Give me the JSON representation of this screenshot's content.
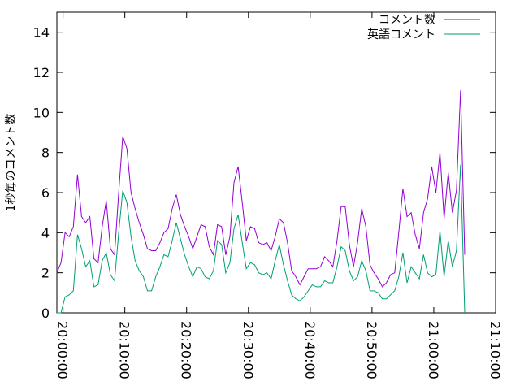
{
  "chart_data": {
    "type": "line",
    "title": "",
    "xlabel": "",
    "ylabel": "1秒毎のコメント数",
    "x_tick_labels": [
      "20:00:00",
      "20:10:00",
      "20:20:00",
      "20:30:00",
      "20:40:00",
      "20:50:00",
      "21:00:00",
      "21:10:00"
    ],
    "y_ticks": [
      0,
      2,
      4,
      6,
      8,
      10,
      12,
      14
    ],
    "xlim": [
      "19:59:00",
      "21:10:00"
    ],
    "ylim": [
      0,
      15
    ],
    "legend_position": "top-right",
    "grid": false,
    "x": [
      "19:59:00",
      "19:59:40",
      "20:00:20",
      "20:01:00",
      "20:01:40",
      "20:02:20",
      "20:03:00",
      "20:03:40",
      "20:04:20",
      "20:05:00",
      "20:05:40",
      "20:06:20",
      "20:07:00",
      "20:07:40",
      "20:08:20",
      "20:09:00",
      "20:09:40",
      "20:10:20",
      "20:11:00",
      "20:11:40",
      "20:12:20",
      "20:13:00",
      "20:13:40",
      "20:14:20",
      "20:15:00",
      "20:15:40",
      "20:16:20",
      "20:17:00",
      "20:17:40",
      "20:18:20",
      "20:19:00",
      "20:19:40",
      "20:20:20",
      "20:21:00",
      "20:21:40",
      "20:22:20",
      "20:23:00",
      "20:23:40",
      "20:24:20",
      "20:25:00",
      "20:25:40",
      "20:26:20",
      "20:27:00",
      "20:27:40",
      "20:28:20",
      "20:29:00",
      "20:29:40",
      "20:30:20",
      "20:31:00",
      "20:31:40",
      "20:32:20",
      "20:33:00",
      "20:33:40",
      "20:34:20",
      "20:35:00",
      "20:35:40",
      "20:36:20",
      "20:37:00",
      "20:37:40",
      "20:38:20",
      "20:39:00",
      "20:39:40",
      "20:40:20",
      "20:41:00",
      "20:41:40",
      "20:42:20",
      "20:43:00",
      "20:43:40",
      "20:44:20",
      "20:45:00",
      "20:45:40",
      "20:46:20",
      "20:47:00",
      "20:47:40",
      "20:48:20",
      "20:49:00",
      "20:49:40",
      "20:50:20",
      "20:51:00",
      "20:51:40",
      "20:52:20",
      "20:53:00",
      "20:53:40",
      "20:54:20",
      "20:55:00",
      "20:55:40",
      "20:56:20",
      "20:57:00",
      "20:57:40",
      "20:58:20",
      "20:59:00",
      "20:59:40",
      "21:00:20",
      "21:01:00",
      "21:01:40",
      "21:02:20",
      "21:03:00",
      "21:03:40",
      "21:04:20",
      "21:05:00"
    ],
    "series": [
      {
        "name": "コメント数",
        "color": "#9400d3",
        "values": [
          2.0,
          2.5,
          4.0,
          3.8,
          4.3,
          6.9,
          4.8,
          4.5,
          4.8,
          2.7,
          2.5,
          4.3,
          5.6,
          3.2,
          2.9,
          6.0,
          8.8,
          8.2,
          6.0,
          5.2,
          4.5,
          3.9,
          3.2,
          3.1,
          3.1,
          3.5,
          4.0,
          4.2,
          5.2,
          5.9,
          4.9,
          4.3,
          3.8,
          3.2,
          3.8,
          4.4,
          4.3,
          3.3,
          2.9,
          4.4,
          4.3,
          2.9,
          3.8,
          6.5,
          7.3,
          5.5,
          3.6,
          4.3,
          4.2,
          3.5,
          3.4,
          3.5,
          3.1,
          3.8,
          4.7,
          4.5,
          3.5,
          2.1,
          1.8,
          1.4,
          1.8,
          2.2,
          2.2,
          2.2,
          2.3,
          2.8,
          2.6,
          2.3,
          3.6,
          5.3,
          5.3,
          3.4,
          2.3,
          3.5,
          5.2,
          4.3,
          2.4,
          2.0,
          1.7,
          1.3,
          1.5,
          1.9,
          2.0,
          4.0,
          6.2,
          4.8,
          5.0,
          3.9,
          3.2,
          5.0,
          5.7,
          7.3,
          6.0,
          8.0,
          4.7,
          7.0,
          5.0,
          6.1,
          11.1,
          2.9
        ]
      },
      {
        "name": "英語コメント",
        "color": "#009e73",
        "values": [
          0.0,
          0.0,
          0.8,
          0.9,
          1.1,
          3.9,
          3.2,
          2.3,
          2.6,
          1.3,
          1.4,
          2.6,
          3.0,
          1.9,
          1.6,
          4.0,
          6.1,
          5.5,
          3.8,
          2.6,
          2.1,
          1.8,
          1.1,
          1.1,
          1.8,
          2.3,
          2.9,
          2.8,
          3.6,
          4.5,
          3.7,
          2.9,
          2.3,
          1.8,
          2.3,
          2.2,
          1.8,
          1.7,
          2.1,
          3.6,
          3.4,
          2.0,
          2.5,
          4.2,
          4.9,
          3.5,
          2.2,
          2.5,
          2.4,
          2.0,
          1.9,
          2.0,
          1.7,
          2.6,
          3.4,
          2.4,
          1.6,
          0.9,
          0.7,
          0.6,
          0.8,
          1.1,
          1.4,
          1.3,
          1.3,
          1.6,
          1.5,
          1.5,
          2.3,
          3.3,
          3.1,
          2.1,
          1.6,
          1.8,
          2.6,
          2.1,
          1.1,
          1.1,
          1.0,
          0.7,
          0.7,
          0.9,
          1.1,
          1.8,
          3.0,
          1.5,
          2.3,
          2.0,
          1.7,
          2.9,
          2.0,
          1.8,
          1.9,
          4.1,
          1.8,
          3.6,
          2.3,
          3.1,
          7.4,
          0.0
        ]
      }
    ]
  }
}
